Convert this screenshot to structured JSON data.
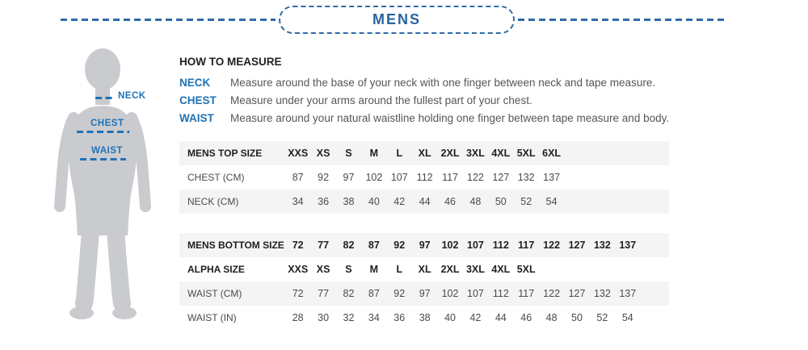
{
  "colors": {
    "accent_blue": "#1f72b6",
    "title_blue": "#2a639d",
    "dash_blue": "#2d6ba8",
    "silhouette_gray": "#c9cbce",
    "row_shade": "#f4f4f5",
    "heading_text": "#221e1f",
    "body_text": "#565659",
    "value_text": "#4a4a4d"
  },
  "header": {
    "title": "MENS"
  },
  "figure": {
    "neck_label": "NECK",
    "chest_label": "CHEST",
    "waist_label": "WAIST"
  },
  "how_to_measure": {
    "heading": "HOW TO MEASURE",
    "rows": [
      {
        "term": "NECK",
        "description": "Measure around the base of your neck with one finger between neck and tape measure."
      },
      {
        "term": "CHEST",
        "description": "Measure under your arms around the fullest part of your chest."
      },
      {
        "term": "WAIST",
        "description": "Measure around your natural waistline holding one finger between tape measure and body."
      }
    ]
  },
  "tables": {
    "top": {
      "rows": [
        {
          "label": "MENS TOP SIZE",
          "bold": true,
          "shaded": true,
          "values": [
            "XXS",
            "XS",
            "S",
            "M",
            "L",
            "XL",
            "2XL",
            "3XL",
            "4XL",
            "5XL",
            "6XL"
          ]
        },
        {
          "label": "CHEST (CM)",
          "bold": false,
          "shaded": false,
          "values": [
            "87",
            "92",
            "97",
            "102",
            "107",
            "112",
            "117",
            "122",
            "127",
            "132",
            "137"
          ]
        },
        {
          "label": "NECK (CM)",
          "bold": false,
          "shaded": true,
          "values": [
            "34",
            "36",
            "38",
            "40",
            "42",
            "44",
            "46",
            "48",
            "50",
            "52",
            "54"
          ]
        }
      ]
    },
    "bottom": {
      "rows": [
        {
          "label": "MENS BOTTOM SIZE",
          "bold": true,
          "shaded": true,
          "values": [
            "72",
            "77",
            "82",
            "87",
            "92",
            "97",
            "102",
            "107",
            "112",
            "117",
            "122",
            "127",
            "132",
            "137"
          ]
        },
        {
          "label": "ALPHA SIZE",
          "bold": true,
          "shaded": false,
          "values": [
            "XXS",
            "XS",
            "S",
            "M",
            "L",
            "XL",
            "2XL",
            "3XL",
            "4XL",
            "5XL"
          ]
        },
        {
          "label": "WAIST (CM)",
          "bold": false,
          "shaded": true,
          "values": [
            "72",
            "77",
            "82",
            "87",
            "92",
            "97",
            "102",
            "107",
            "112",
            "117",
            "122",
            "127",
            "132",
            "137"
          ]
        },
        {
          "label": "WAIST (IN)",
          "bold": false,
          "shaded": false,
          "values": [
            "28",
            "30",
            "32",
            "34",
            "36",
            "38",
            "40",
            "42",
            "44",
            "46",
            "48",
            "50",
            "52",
            "54"
          ]
        }
      ]
    }
  }
}
